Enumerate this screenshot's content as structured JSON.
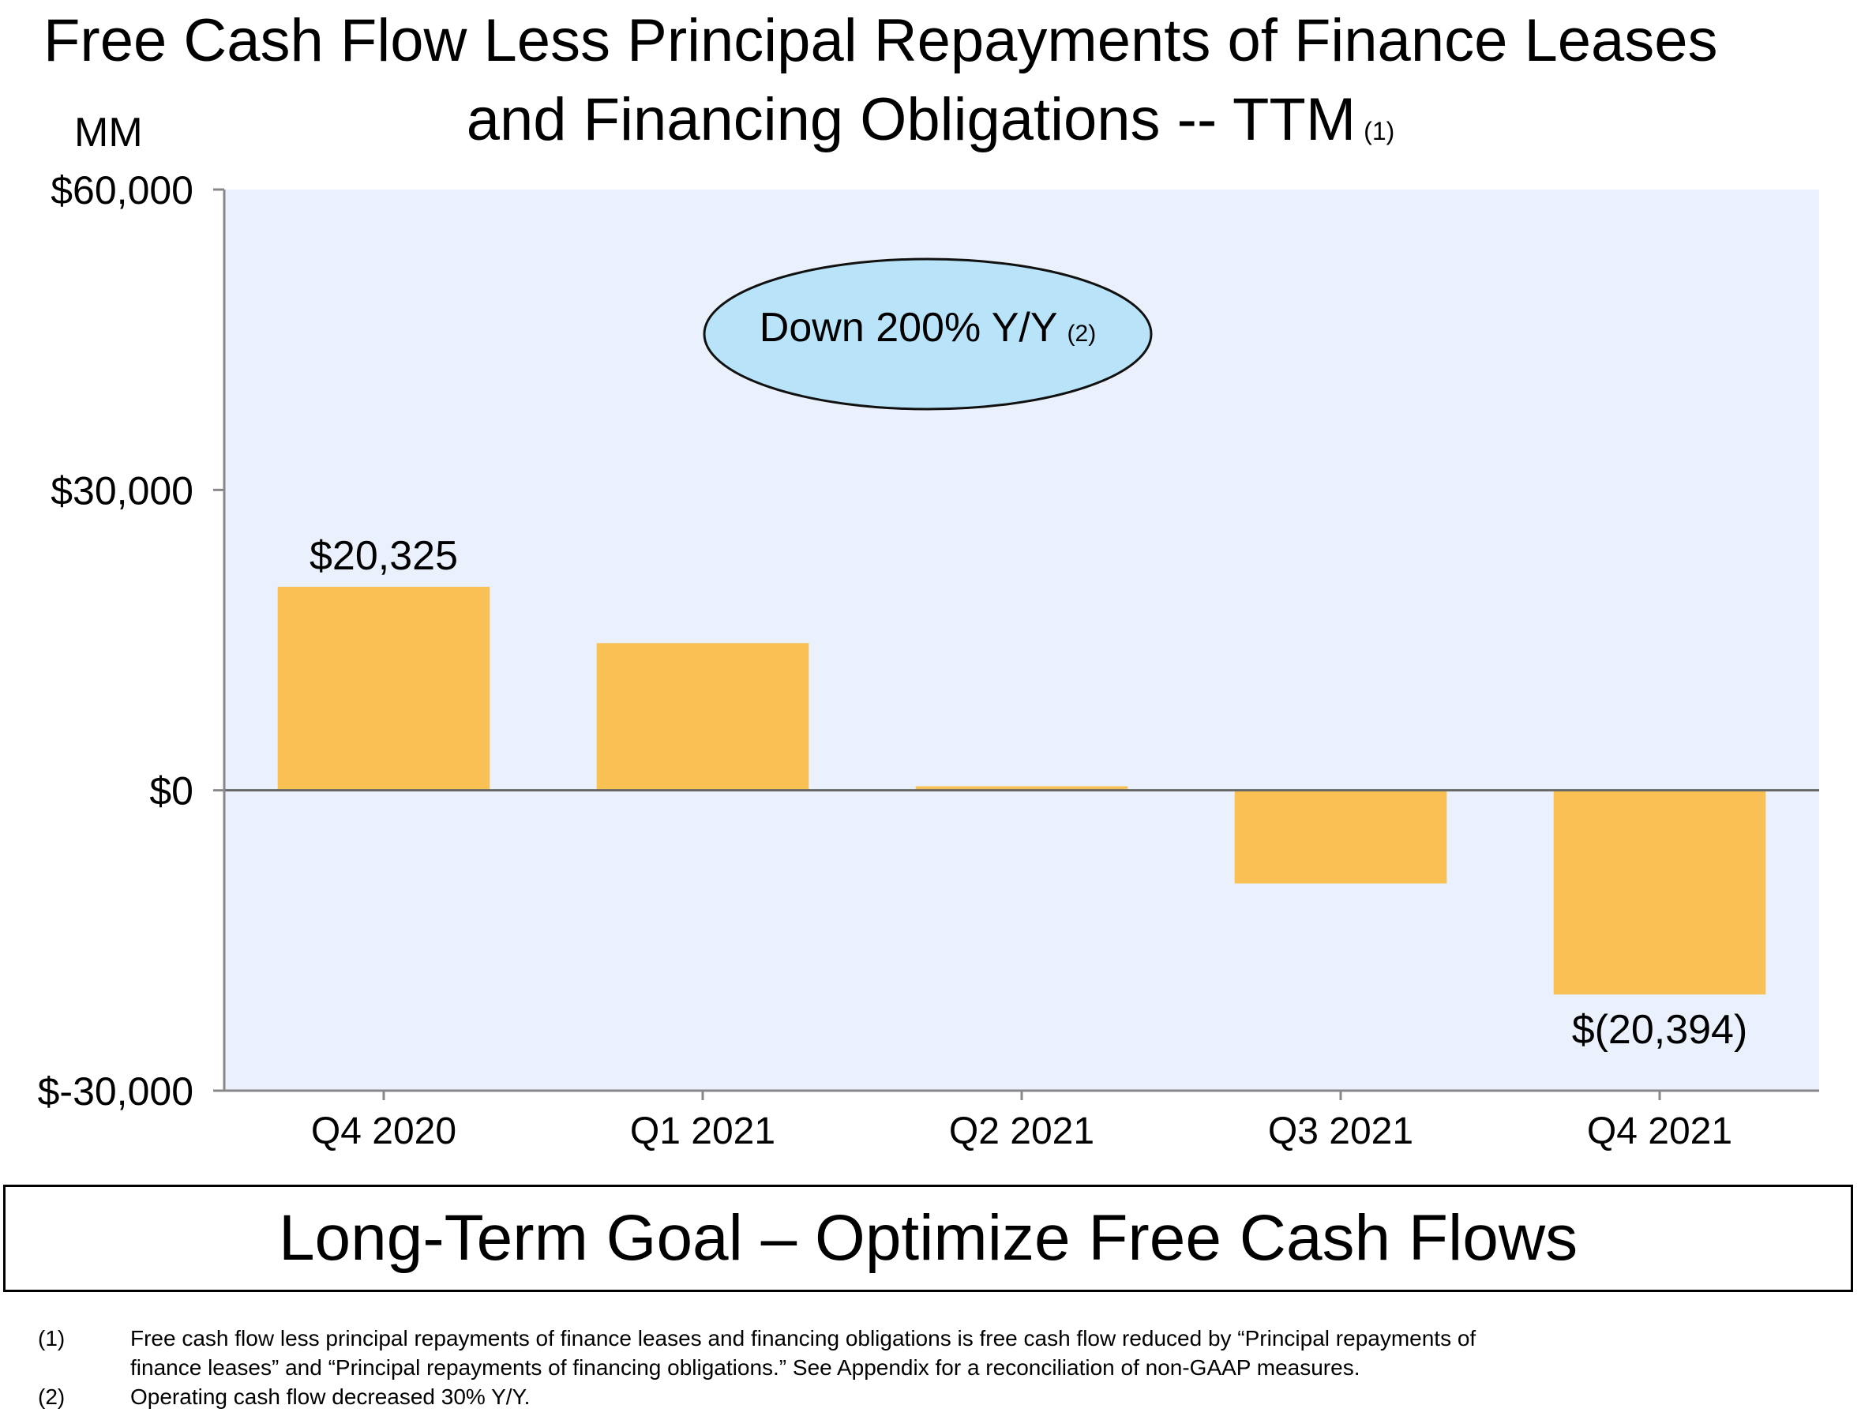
{
  "title": {
    "line1": "Free Cash Flow Less Principal Repayments of Finance Leases",
    "line2": "and Financing Obligations -- TTM",
    "note_marker": "(1)"
  },
  "unit_label": "MM",
  "chart_data": {
    "type": "bar",
    "title": "Free Cash Flow Less Principal Repayments of Finance Leases and Financing Obligations -- TTM",
    "xlabel": "",
    "ylabel": "MM",
    "categories": [
      "Q4 2020",
      "Q1 2021",
      "Q2 2021",
      "Q3 2021",
      "Q4 2021"
    ],
    "values": [
      20325,
      14700,
      400,
      -9300,
      -20394
    ],
    "data_labels": [
      "$20,325",
      "",
      "",
      "",
      "$(20,394)"
    ],
    "ylim": [
      -30000,
      60000
    ],
    "yticks": [
      60000,
      30000,
      0,
      -30000
    ],
    "ytick_labels": [
      "$60,000",
      "$30,000",
      "$0",
      "$-30,000"
    ],
    "grid": false,
    "bar_color": "#F9C154",
    "plot_bg_color": "#EAF1FC",
    "annotation": {
      "text": "Down 200% Y/Y",
      "note_marker": "(2)",
      "fill_color": "#B8E3F8"
    }
  },
  "goal": {
    "text": "Long-Term Goal – Optimize Free Cash Flows"
  },
  "footnotes": [
    {
      "marker": "(1)",
      "line1": "Free cash flow less principal repayments of finance leases and financing obligations is free cash flow reduced by “Principal repayments of",
      "line2": "finance leases” and “Principal repayments of financing obligations.” See Appendix for a reconciliation of non-GAAP measures."
    },
    {
      "marker": "(2)",
      "line1": "Operating cash flow decreased 30% Y/Y."
    }
  ]
}
